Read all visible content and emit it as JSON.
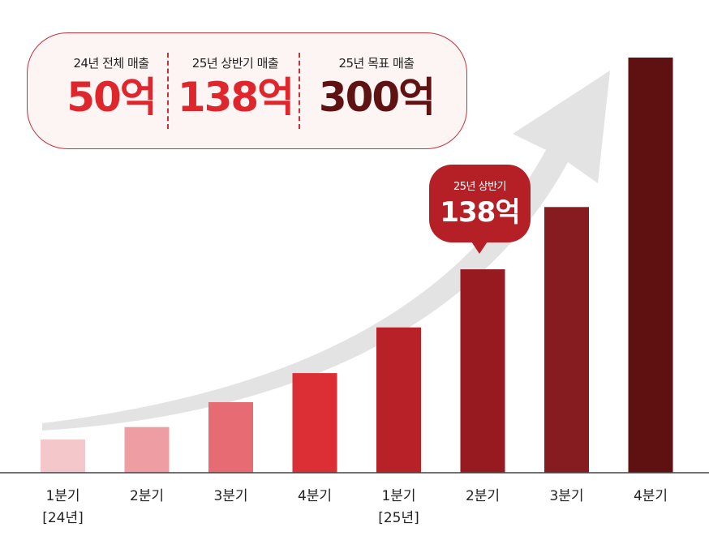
{
  "summary": {
    "items": [
      {
        "label": "24년 전체 매출",
        "value": "50억",
        "color": "#e0262d"
      },
      {
        "label": "25년 상반기 매출",
        "value": "138억",
        "color": "#e0262d"
      },
      {
        "label": "25년 목표 매출",
        "value": "300억",
        "color": "#5e1212"
      }
    ]
  },
  "callout": {
    "label": "25년 상반기",
    "value": "138억"
  },
  "chart_data": {
    "type": "bar",
    "categories": [
      "1분기",
      "2분기",
      "3분기",
      "4분기",
      "1분기",
      "2분기",
      "3분기",
      "4분기"
    ],
    "year_labels": [
      "[24년]",
      "",
      "",
      "",
      "[25년]",
      "",
      "",
      ""
    ],
    "values": [
      8,
      11,
      17,
      24,
      35,
      49,
      64,
      100
    ],
    "value_unit": "relative bar height (% of tallest bar, no axis printed)",
    "colors": [
      "#f4c8cb",
      "#ee9ea3",
      "#e66b72",
      "#dc2f35",
      "#b82127",
      "#971a21",
      "#861b20",
      "#5f1112"
    ],
    "trend_arrow": true,
    "grid": false,
    "legend": "none"
  }
}
